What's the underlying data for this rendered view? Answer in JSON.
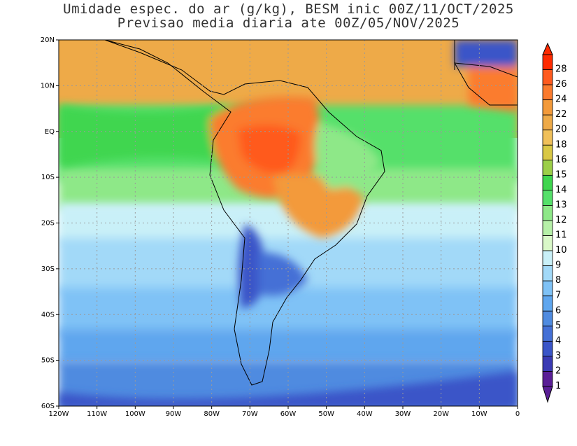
{
  "title": {
    "line1": "Umidade espec. do ar (g/kg), BESM inic 00Z/11/OCT/2025",
    "line2": "Previsao media diaria ate 00Z/05/NOV/2025"
  },
  "map": {
    "lon_range": [
      -120,
      0
    ],
    "lat_range": [
      -60,
      20
    ],
    "lon_labels": [
      "120W",
      "110W",
      "100W",
      "90W",
      "80W",
      "70W",
      "60W",
      "50W",
      "40W",
      "30W",
      "20W",
      "10W",
      "0"
    ],
    "lat_labels": [
      "20N",
      "10N",
      "EQ",
      "10S",
      "20S",
      "30S",
      "40S",
      "50S",
      "60S"
    ]
  },
  "colorbar": {
    "levels": [
      "28",
      "26",
      "24",
      "22",
      "20",
      "18",
      "16",
      "15",
      "14",
      "13",
      "12",
      "11",
      "10",
      "9",
      "8",
      "7",
      "6",
      "5",
      "4",
      "3",
      "2",
      "1"
    ],
    "colors": [
      "#ff2a00",
      "#ff5a1e",
      "#fb7b2e",
      "#f39a3a",
      "#eeaa48",
      "#f0c05a",
      "#d9c845",
      "#9ccf48",
      "#3fd64f",
      "#55e06a",
      "#8ee888",
      "#b6f0a8",
      "#d9f8c8",
      "#c9f0f8",
      "#a2d9f8",
      "#7fc2f6",
      "#5fa6ee",
      "#4f8be0",
      "#4470d6",
      "#3a55c8",
      "#3a3ab4",
      "#5a1e96"
    ]
  },
  "legend_labels_note": ""
}
